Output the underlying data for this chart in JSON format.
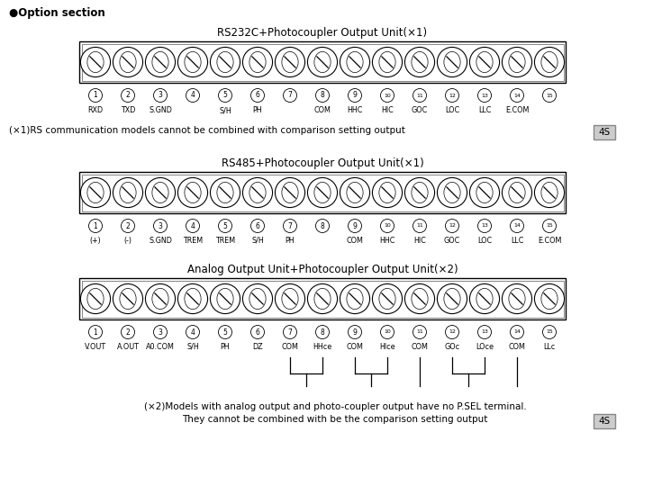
{
  "title": "●Option section",
  "sections": [
    {
      "title": "RS232C+Photocoupler Output Unit(×1)",
      "num_terminals": 15,
      "pin_numbers": [
        "1",
        "2",
        "3",
        "4",
        "5",
        "6",
        "7",
        "8",
        "9",
        "10",
        "11",
        "12",
        "13",
        "14",
        "15"
      ],
      "labels": [
        "RXD",
        "TXD",
        "S.GND",
        "",
        "S/H",
        "PH",
        "",
        "COM",
        "HHC",
        "HIC",
        "GOC",
        "LOC",
        "LLC",
        "E.COM",
        ""
      ],
      "note": "(×1)RS communication models cannot be combined with comparison setting output",
      "note_box": "4S"
    },
    {
      "title": "RS485+Photocoupler Output Unit(×1)",
      "num_terminals": 15,
      "pin_numbers": [
        "1",
        "2",
        "3",
        "4",
        "5",
        "6",
        "7",
        "8",
        "9",
        "10",
        "11",
        "12",
        "13",
        "14",
        "15"
      ],
      "labels": [
        "(+)",
        "(-)",
        "S.GND",
        "TREM",
        "TREM",
        "S/H",
        "PH",
        "",
        "COM",
        "HHC",
        "HIC",
        "GOC",
        "LOC",
        "LLC",
        "E.COM"
      ],
      "note": null,
      "note_box": null
    },
    {
      "title": "Analog Output Unit+Photocoupler Output Unit(×2)",
      "num_terminals": 15,
      "pin_numbers": [
        "1",
        "2",
        "3",
        "4",
        "5",
        "6",
        "7",
        "8",
        "9",
        "10",
        "11",
        "12",
        "13",
        "14",
        "15"
      ],
      "labels": [
        "V.OUT",
        "A.OUT",
        "A0.COM",
        "S/H",
        "PH",
        "DZ",
        "COM",
        "HHce",
        "COM",
        "HIce",
        "COM",
        "GOc",
        "LOce",
        "COM",
        "LLc"
      ],
      "note_line1": "(×2)Models with analog output and photo-coupler output have no P.SEL terminal.",
      "note_line2": "They cannot be combined with be the comparison setting output",
      "note_box": "4S",
      "has_connectors": true
    }
  ],
  "bg_color": "#ffffff"
}
